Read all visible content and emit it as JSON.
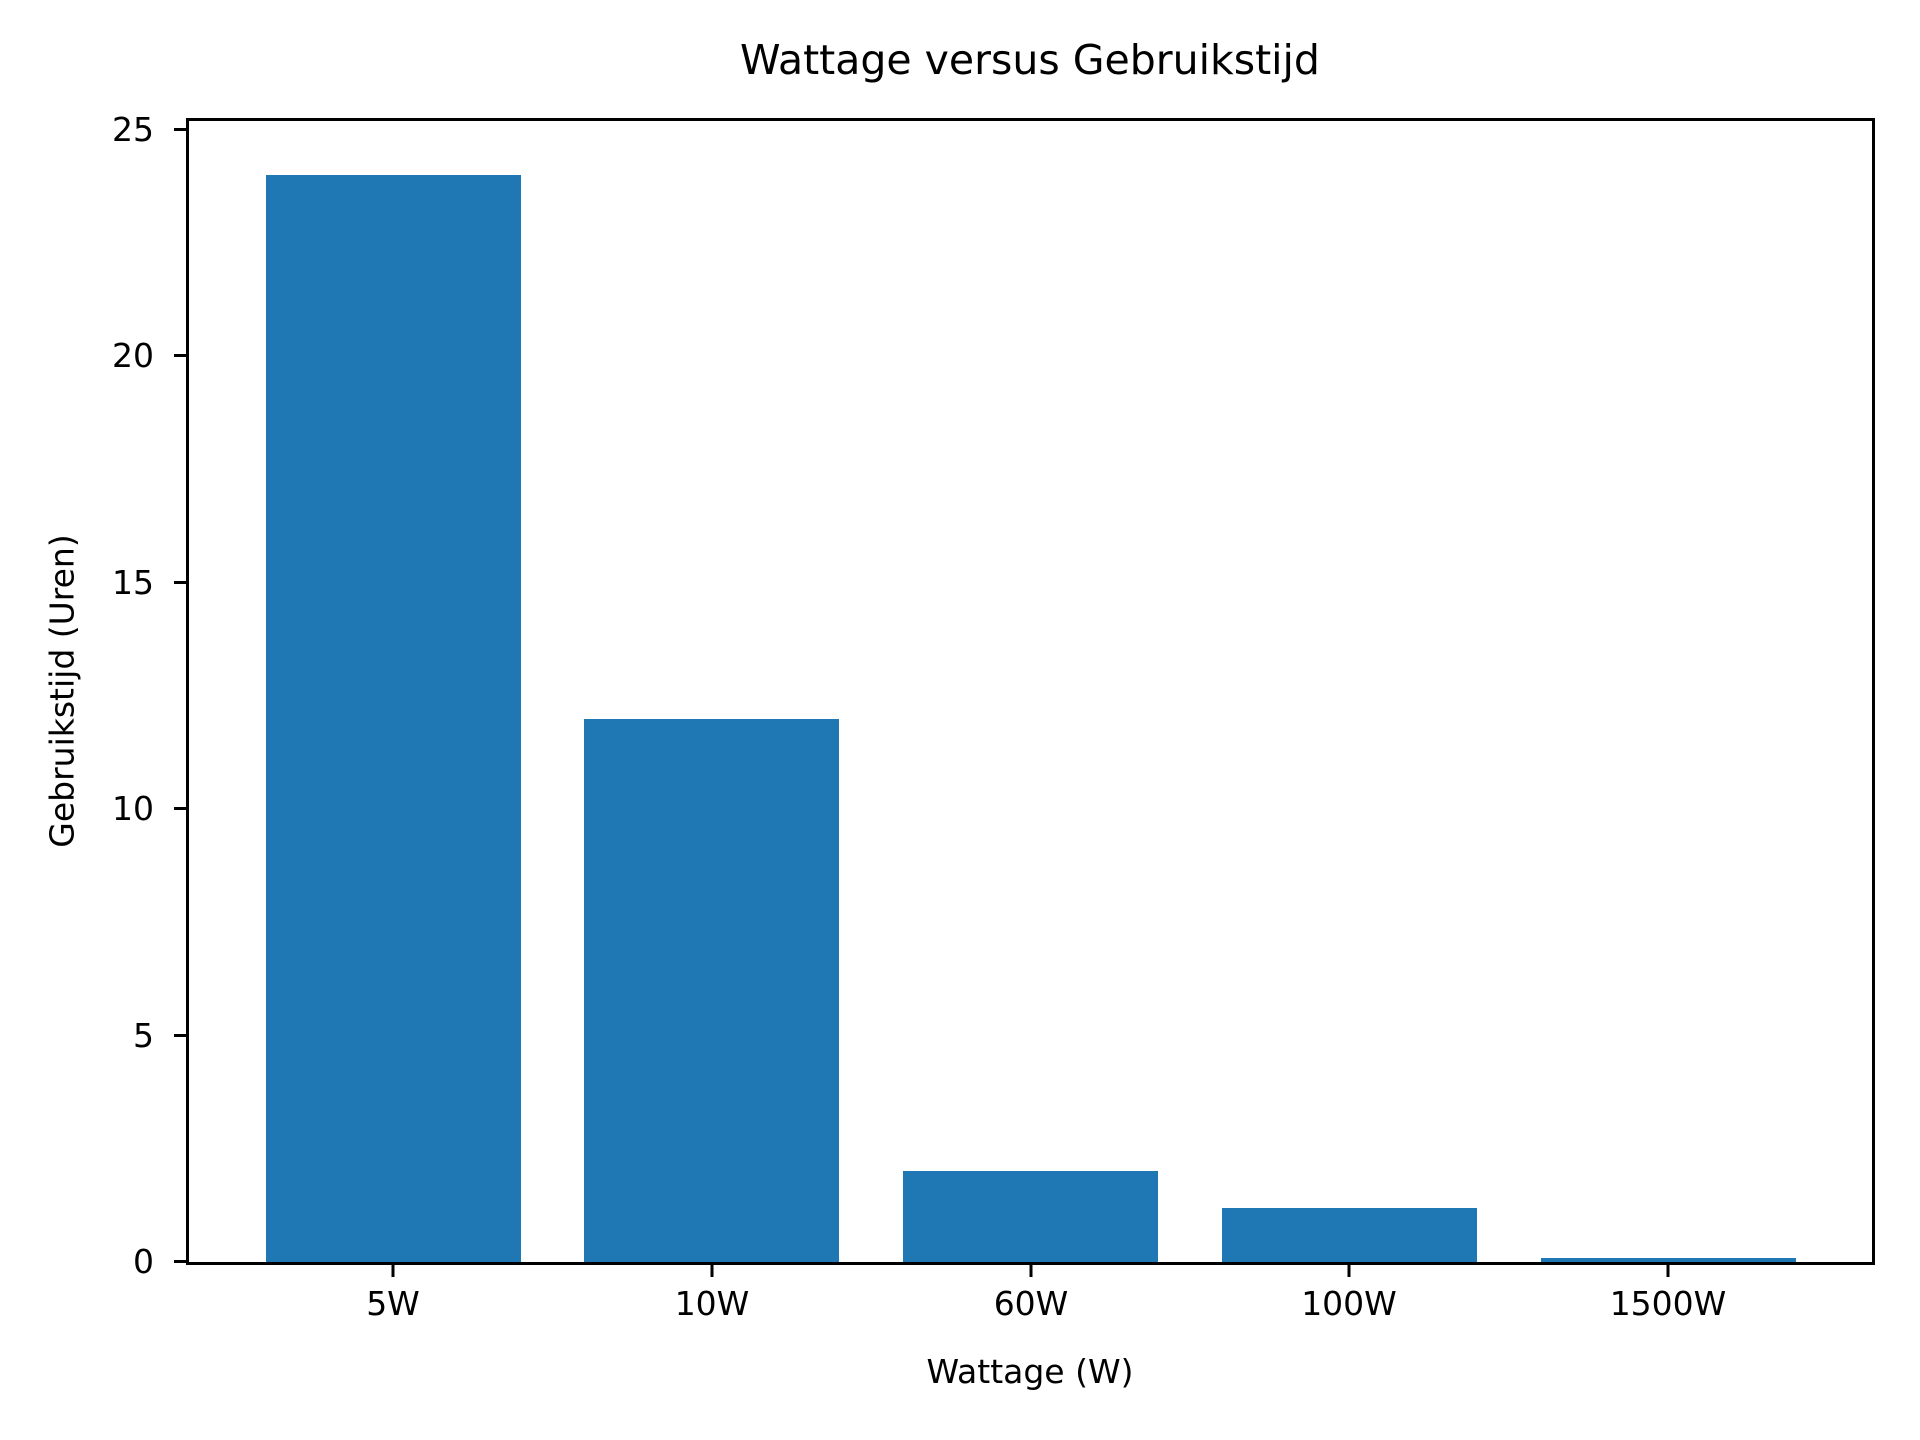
{
  "chart_data": {
    "type": "bar",
    "title": "Wattage versus Gebruikstijd",
    "xlabel": "Wattage (W)",
    "ylabel": "Gebruikstijd (Uren)",
    "categories": [
      "5W",
      "10W",
      "60W",
      "100W",
      "1500W"
    ],
    "values": [
      24,
      12,
      2,
      1.2,
      0.08
    ],
    "yticks": [
      0,
      5,
      10,
      15,
      20,
      25
    ],
    "ylim": [
      0,
      25.2
    ],
    "xlim_units": [
      -0.64,
      4.64
    ],
    "bar_width_units": 0.8,
    "bar_color": "#1f77b4",
    "axis_color": "#000000",
    "text_color": "#000000",
    "background_color": "#ffffff",
    "grid": false,
    "legend": false
  }
}
